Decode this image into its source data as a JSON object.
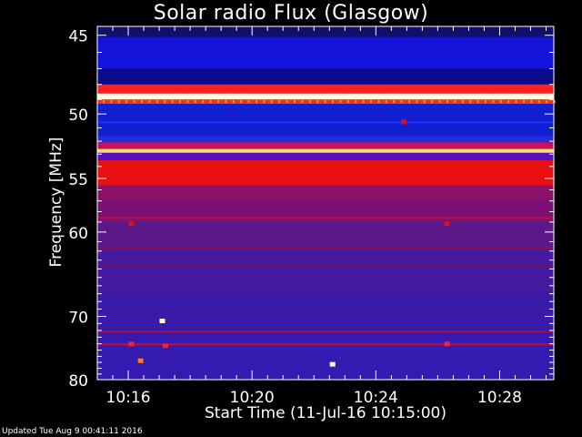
{
  "chart_data": {
    "type": "heatmap",
    "title": "Solar radio Flux (Glasgow)",
    "xlabel": "Start Time (11-Jul-16 10:15:00)",
    "ylabel": "Frequency [MHz]",
    "x_tick_labels": [
      "10:16",
      "10:20",
      "10:24",
      "10:28"
    ],
    "x_tick_minutes": [
      16,
      20,
      24,
      28
    ],
    "x_range_minutes": [
      15,
      29.75
    ],
    "y_ticks": [
      45,
      50,
      55,
      60,
      70,
      80
    ],
    "y_range": [
      44.5,
      80
    ],
    "y_scale": "reciprocal",
    "bands": [
      {
        "f0": 44.5,
        "f1": 45.1,
        "color": "#10106a"
      },
      {
        "f0": 45.1,
        "f1": 47.0,
        "color": "#1414d8"
      },
      {
        "f0": 47.0,
        "f1": 48.0,
        "color": "#0a0a8a"
      },
      {
        "f0": 48.0,
        "f1": 48.6,
        "color": "#ff2020"
      },
      {
        "f0": 48.6,
        "f1": 49.0,
        "color": "#ffffe0"
      },
      {
        "f0": 49.0,
        "f1": 49.3,
        "color": "#ff3010"
      },
      {
        "f0": 49.3,
        "f1": 51.6,
        "color": "#1020d0"
      },
      {
        "f0": 51.6,
        "f1": 52.1,
        "color": "#2a2ad8"
      },
      {
        "f0": 52.1,
        "f1": 52.6,
        "color": "#d01050"
      },
      {
        "f0": 52.6,
        "f1": 52.9,
        "color": "#ffe080"
      },
      {
        "f0": 52.9,
        "f1": 53.5,
        "color": "#5a10c0"
      },
      {
        "f0": 53.5,
        "f1": 55.6,
        "color": "#e81010"
      },
      {
        "f0": 55.6,
        "f1": 57.0,
        "color": "#8a1068"
      },
      {
        "f0": 57.0,
        "f1": 59.0,
        "color": "#7a1078"
      },
      {
        "f0": 59.0,
        "f1": 62.0,
        "color": "#5a1888"
      },
      {
        "f0": 62.0,
        "f1": 67.0,
        "color": "#441aa0"
      },
      {
        "f0": 67.0,
        "f1": 72.0,
        "color": "#3a1aa8"
      },
      {
        "f0": 72.0,
        "f1": 80.0,
        "color": "#341ab0"
      }
    ],
    "lines": [
      {
        "f": 50.6,
        "color": "#2030ff"
      },
      {
        "f": 58.6,
        "color": "#c01030"
      },
      {
        "f": 61.7,
        "color": "#7a1060"
      },
      {
        "f": 63.6,
        "color": "#7a1050"
      },
      {
        "f": 72.2,
        "color": "#a01040"
      },
      {
        "f": 74.1,
        "color": "#c01030"
      }
    ],
    "spots": [
      {
        "t": 16.1,
        "f": 59.2,
        "color": "#e01010"
      },
      {
        "t": 26.3,
        "f": 59.2,
        "color": "#e01010"
      },
      {
        "t": 24.9,
        "f": 50.6,
        "color": "#e01010"
      },
      {
        "t": 17.1,
        "f": 70.7,
        "color": "#ffffd0"
      },
      {
        "t": 16.1,
        "f": 74.1,
        "color": "#ff2020"
      },
      {
        "t": 26.3,
        "f": 74.1,
        "color": "#ff2020"
      },
      {
        "t": 16.4,
        "f": 76.8,
        "color": "#ff8010"
      },
      {
        "t": 22.6,
        "f": 77.4,
        "color": "#ffffd0"
      },
      {
        "t": 17.2,
        "f": 74.4,
        "color": "#ff2020"
      }
    ]
  },
  "footer": "Updated Tue Aug  9 00:41:11 2016"
}
